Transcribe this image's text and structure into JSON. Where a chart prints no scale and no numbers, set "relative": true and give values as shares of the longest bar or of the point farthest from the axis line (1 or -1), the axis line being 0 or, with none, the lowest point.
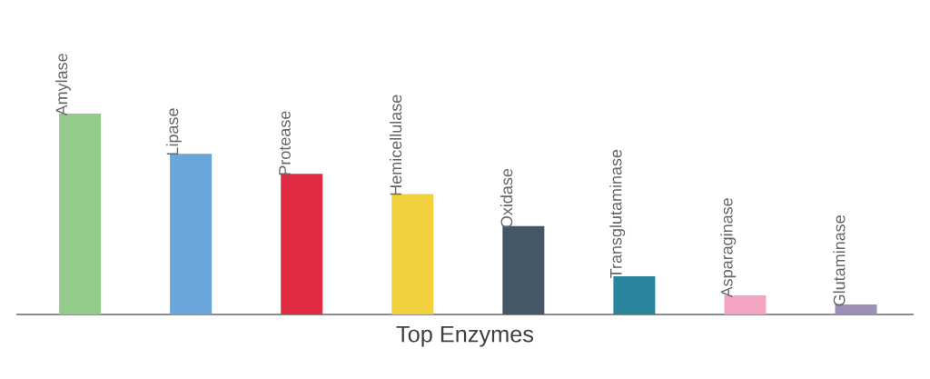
{
  "chart_data": {
    "type": "bar",
    "xlabel": "Top Enzymes",
    "categories": [
      "Amylase",
      "Lipase",
      "Protease",
      "Hemicellulase",
      "Oxidase",
      "Transglutaminase",
      "Asparaginase",
      "Glutaminase"
    ],
    "values": [
      1,
      0.8,
      0.7,
      0.6,
      0.44,
      0.19,
      0.095,
      0.05
    ],
    "colors": [
      "#93cb8b",
      "#68a5d8",
      "#e02b43",
      "#f0d03c",
      "#465868",
      "#2a859c",
      "#f4a3c3",
      "#9e8fb8"
    ],
    "relative": true
  }
}
